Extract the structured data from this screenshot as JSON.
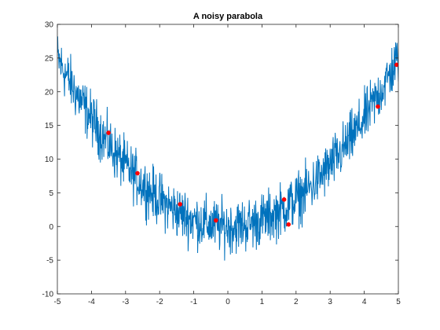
{
  "chart_data": {
    "type": "line",
    "title": "A noisy parabola",
    "xlabel": "",
    "ylabel": "",
    "xlim": [
      -5,
      5
    ],
    "ylim": [
      -10,
      30
    ],
    "x_ticks": [
      -5,
      -4,
      -3,
      -2,
      -1,
      0,
      1,
      2,
      3,
      4,
      5
    ],
    "y_ticks": [
      -10,
      -5,
      0,
      5,
      10,
      15,
      20,
      25,
      30
    ],
    "grid": false,
    "legend": "none",
    "colors": {
      "line": "#0072bd",
      "points": "#ff0000",
      "axes": "#262626"
    },
    "series": [
      {
        "kind": "line",
        "x_range": [
          -5,
          5
        ],
        "num_points": 1000,
        "trend": "y = x^2",
        "noise_amplitude": 3
      },
      {
        "kind": "markers",
        "points": [
          {
            "x": -3.5,
            "y": 13.9
          },
          {
            "x": -2.65,
            "y": 7.9
          },
          {
            "x": -1.4,
            "y": 3.3
          },
          {
            "x": -0.35,
            "y": 0.9
          },
          {
            "x": 1.65,
            "y": 4.0
          },
          {
            "x": 1.78,
            "y": 0.3
          },
          {
            "x": 4.4,
            "y": 17.8
          },
          {
            "x": 4.95,
            "y": 24.0
          }
        ]
      }
    ]
  }
}
